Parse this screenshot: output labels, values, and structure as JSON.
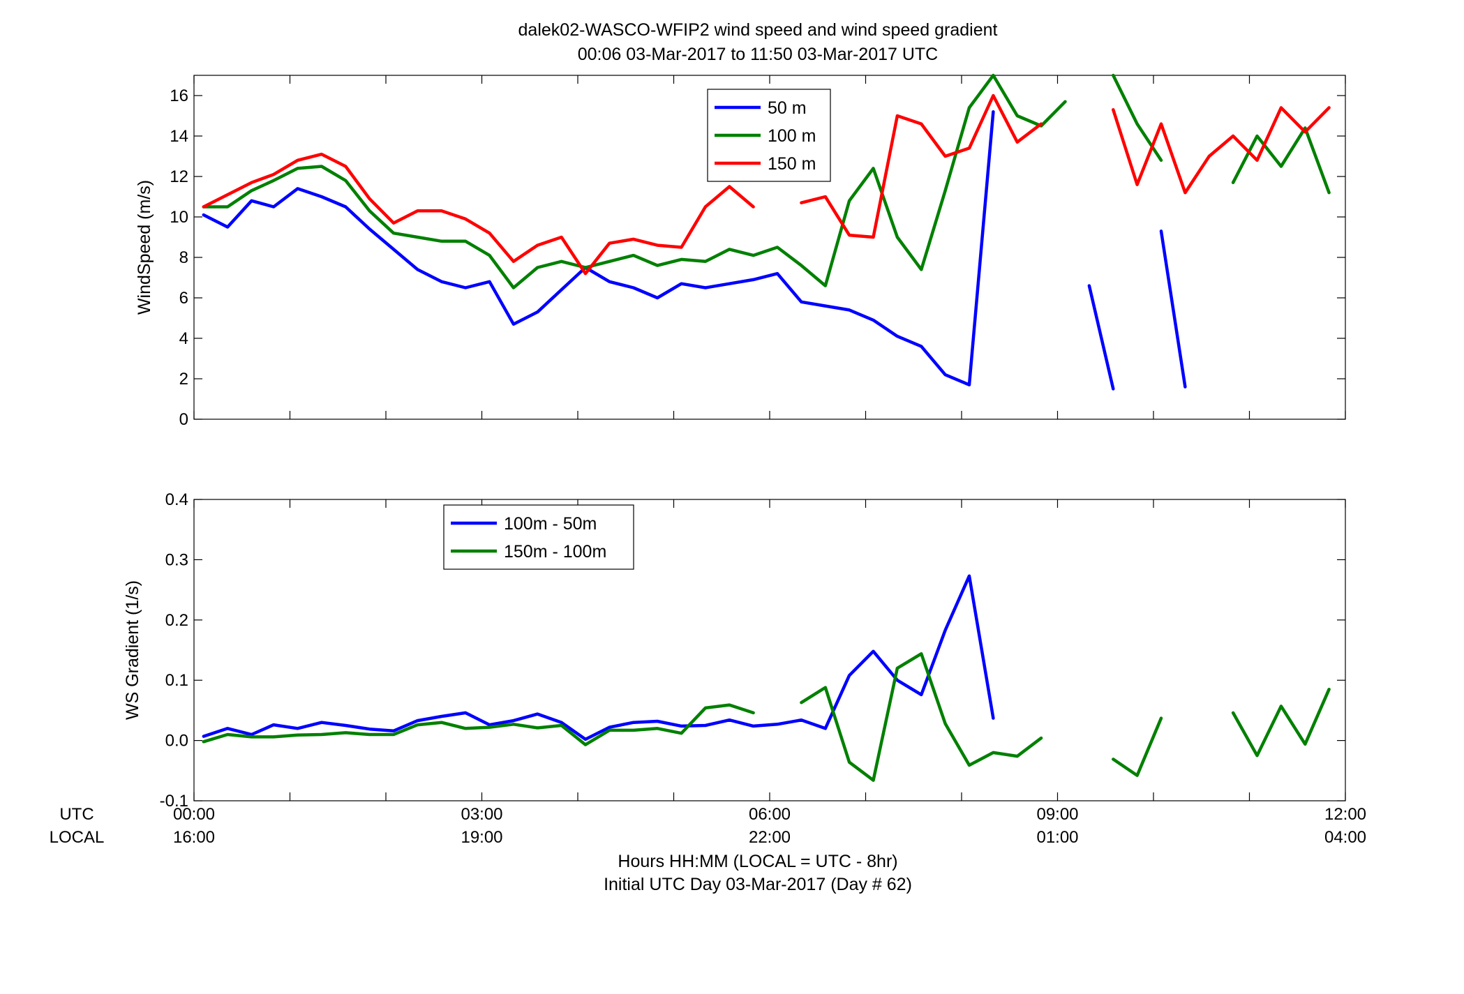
{
  "figure": {
    "title_line1": "dalek02-WASCO-WFIP2  wind speed and wind speed gradient",
    "title_line2": "00:06 03-Mar-2017 to 11:50 03-Mar-2017  UTC",
    "xlabel_line1": "Hours HH:MM  (LOCAL = UTC - 8hr)",
    "xlabel_line2": "Initial UTC Day 03-Mar-2017 (Day # 62)",
    "utc_row_label": "UTC",
    "local_row_label": "LOCAL",
    "utc_ticks": [
      "00:00",
      "03:00",
      "06:00",
      "09:00",
      "12:00"
    ],
    "local_ticks": [
      "16:00",
      "19:00",
      "22:00",
      "01:00",
      "04:00"
    ]
  },
  "chart_data": [
    {
      "type": "line",
      "ylabel": "WindSpeed (m/s)",
      "xlim_hours": [
        0,
        12
      ],
      "ylim": [
        0,
        17
      ],
      "yticks": [
        0,
        2,
        4,
        6,
        8,
        10,
        12,
        14,
        16
      ],
      "legend_position": "top-center",
      "series": [
        {
          "name": "50 m",
          "color": "#0000ff",
          "x": [
            0.1,
            0.35,
            0.6,
            0.83,
            1.08,
            1.33,
            1.58,
            1.83,
            2.08,
            2.33,
            2.58,
            2.83,
            3.08,
            3.33,
            3.58,
            3.83,
            4.08,
            4.33,
            4.58,
            4.83,
            5.08,
            5.33,
            5.58,
            5.83,
            6.08,
            6.33,
            6.58,
            6.83,
            7.08,
            7.33,
            7.58,
            7.83,
            8.08,
            8.33,
            8.58,
            8.83,
            9.08,
            9.33,
            9.58,
            9.83,
            10.08,
            10.33
          ],
          "y": [
            10.1,
            9.5,
            10.8,
            10.5,
            11.4,
            11.0,
            10.5,
            9.4,
            8.4,
            7.4,
            6.8,
            6.5,
            6.8,
            4.7,
            5.3,
            6.4,
            7.5,
            6.8,
            6.5,
            6.0,
            6.7,
            6.5,
            6.7,
            6.9,
            7.2,
            5.8,
            5.6,
            5.4,
            4.9,
            4.1,
            3.6,
            2.2,
            1.7,
            15.2,
            null,
            null,
            null,
            6.6,
            1.5,
            null,
            9.3,
            1.6
          ]
        },
        {
          "name": "100 m",
          "color": "#008000",
          "x": [
            0.1,
            0.35,
            0.6,
            0.83,
            1.08,
            1.33,
            1.58,
            1.83,
            2.08,
            2.33,
            2.58,
            2.83,
            3.08,
            3.33,
            3.58,
            3.83,
            4.08,
            4.33,
            4.58,
            4.83,
            5.08,
            5.33,
            5.58,
            5.83,
            6.08,
            6.33,
            6.58,
            6.83,
            7.08,
            7.33,
            7.58,
            7.83,
            8.08,
            8.33,
            8.58,
            8.83,
            9.08,
            9.33,
            9.58,
            9.83,
            10.08,
            10.33,
            10.58,
            10.83,
            11.08,
            11.33,
            11.58,
            11.83
          ],
          "y": [
            10.5,
            10.5,
            11.3,
            11.8,
            12.4,
            12.5,
            11.8,
            10.3,
            9.2,
            9.0,
            8.8,
            8.8,
            8.1,
            6.5,
            7.5,
            7.8,
            7.5,
            7.8,
            8.1,
            7.6,
            7.9,
            7.8,
            8.4,
            8.1,
            8.5,
            7.6,
            6.6,
            10.8,
            12.4,
            9.0,
            7.4,
            11.3,
            15.4,
            17.0,
            15.0,
            14.5,
            15.7,
            null,
            17.0,
            14.6,
            12.8,
            null,
            null,
            11.7,
            14.0,
            12.5,
            14.4,
            11.2
          ]
        },
        {
          "name": "150 m",
          "color": "#ff0000",
          "x": [
            0.1,
            0.35,
            0.6,
            0.83,
            1.08,
            1.33,
            1.58,
            1.83,
            2.08,
            2.33,
            2.58,
            2.83,
            3.08,
            3.33,
            3.58,
            3.83,
            4.08,
            4.33,
            4.58,
            4.83,
            5.08,
            5.33,
            5.58,
            5.83,
            6.08,
            6.33,
            6.58,
            6.83,
            7.08,
            7.33,
            7.58,
            7.83,
            8.08,
            8.33,
            8.58,
            8.83,
            9.08,
            9.33,
            9.58,
            9.83,
            10.08,
            10.33,
            10.58,
            10.83,
            11.08,
            11.33,
            11.58,
            11.83
          ],
          "y": [
            10.5,
            11.1,
            11.7,
            12.1,
            12.8,
            13.1,
            12.5,
            10.9,
            9.7,
            10.3,
            10.3,
            9.9,
            9.2,
            7.8,
            8.6,
            9.0,
            7.2,
            8.7,
            8.9,
            8.6,
            8.5,
            10.5,
            11.5,
            10.5,
            null,
            10.7,
            11.0,
            9.1,
            9.0,
            15.0,
            14.6,
            13.0,
            13.4,
            16.0,
            13.7,
            14.6,
            null,
            null,
            15.3,
            11.6,
            14.6,
            11.2,
            13.0,
            14.0,
            12.8,
            15.4,
            14.2,
            15.4
          ]
        }
      ]
    },
    {
      "type": "line",
      "ylabel": "WS Gradient (1/s)",
      "xlim_hours": [
        0,
        12
      ],
      "ylim": [
        -0.1,
        0.4
      ],
      "yticks": [
        -0.1,
        0,
        0.1,
        0.2,
        0.3,
        0.4
      ],
      "legend_position": "top-left",
      "series": [
        {
          "name": "100m - 50m",
          "color": "#0000ff",
          "x": [
            0.1,
            0.35,
            0.6,
            0.83,
            1.08,
            1.33,
            1.58,
            1.83,
            2.08,
            2.33,
            2.58,
            2.83,
            3.08,
            3.33,
            3.58,
            3.83,
            4.08,
            4.33,
            4.58,
            4.83,
            5.08,
            5.33,
            5.58,
            5.83,
            6.08,
            6.33,
            6.58,
            6.83,
            7.08,
            7.33,
            7.58,
            7.83,
            8.08,
            8.33
          ],
          "y": [
            0.007,
            0.02,
            0.01,
            0.026,
            0.02,
            0.03,
            0.025,
            0.019,
            0.016,
            0.033,
            0.04,
            0.046,
            0.026,
            0.033,
            0.044,
            0.03,
            0.002,
            0.022,
            0.03,
            0.032,
            0.024,
            0.025,
            0.034,
            0.024,
            0.027,
            0.034,
            0.02,
            0.108,
            0.148,
            0.1,
            0.076,
            0.183,
            0.273,
            0.037
          ]
        },
        {
          "name": "150m - 100m",
          "color": "#008000",
          "x": [
            0.1,
            0.35,
            0.6,
            0.83,
            1.08,
            1.33,
            1.58,
            1.83,
            2.08,
            2.33,
            2.58,
            2.83,
            3.08,
            3.33,
            3.58,
            3.83,
            4.08,
            4.33,
            4.58,
            4.83,
            5.08,
            5.33,
            5.58,
            5.83,
            6.08,
            6.33,
            6.58,
            6.83,
            7.08,
            7.33,
            7.58,
            7.83,
            8.08,
            8.33,
            8.58,
            8.83,
            9.08,
            9.33,
            9.58,
            9.83,
            10.08,
            10.33,
            10.58,
            10.83,
            11.08,
            11.33,
            11.58,
            11.83
          ],
          "y": [
            -0.002,
            0.01,
            0.006,
            0.006,
            0.009,
            0.01,
            0.013,
            0.01,
            0.01,
            0.026,
            0.03,
            0.02,
            0.022,
            0.027,
            0.021,
            0.025,
            -0.007,
            0.017,
            0.017,
            0.02,
            0.012,
            0.054,
            0.059,
            0.046,
            null,
            0.063,
            0.088,
            -0.036,
            -0.066,
            0.12,
            0.144,
            0.028,
            -0.041,
            -0.02,
            -0.026,
            0.004,
            null,
            null,
            -0.031,
            -0.058,
            0.037,
            null,
            null,
            0.046,
            -0.025,
            0.057,
            -0.006,
            0.085
          ]
        }
      ]
    }
  ]
}
